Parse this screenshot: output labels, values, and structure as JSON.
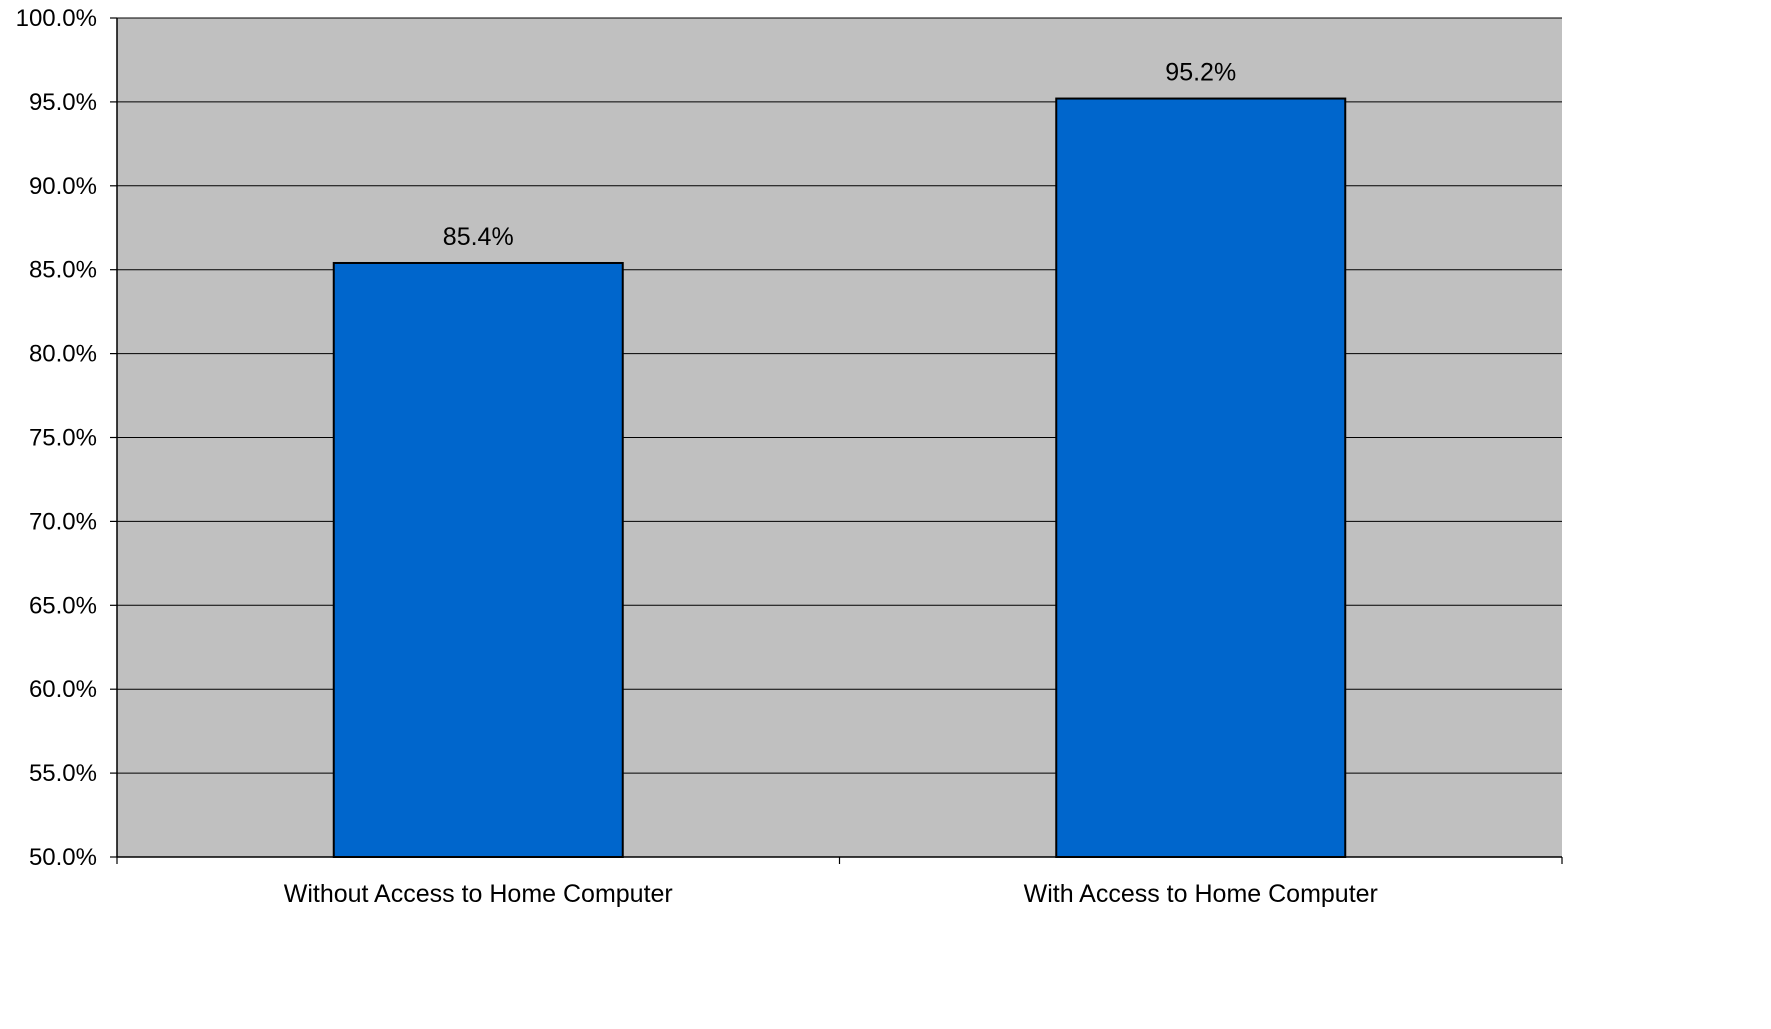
{
  "chart_data": {
    "type": "bar",
    "title": "",
    "xlabel": "",
    "ylabel": "",
    "categories": [
      "Without Access to Home Computer",
      "With Access to Home Computer"
    ],
    "values": [
      85.4,
      95.2
    ],
    "data_labels": [
      "85.4%",
      "95.2%"
    ],
    "ylim": [
      50,
      100
    ],
    "ytick_values": [
      50,
      55,
      60,
      65,
      70,
      75,
      80,
      85,
      90,
      95,
      100
    ],
    "ytick_labels": [
      "50.0%",
      "55.0%",
      "60.0%",
      "65.0%",
      "70.0%",
      "75.0%",
      "80.0%",
      "85.0%",
      "90.0%",
      "95.0%",
      "100.0%"
    ],
    "grid": true,
    "legend": "none",
    "colors": {
      "bar": "#0066CC",
      "bar_edge": "#000000",
      "plot_background": "#C0C0C0",
      "gridline": "#000000"
    }
  }
}
